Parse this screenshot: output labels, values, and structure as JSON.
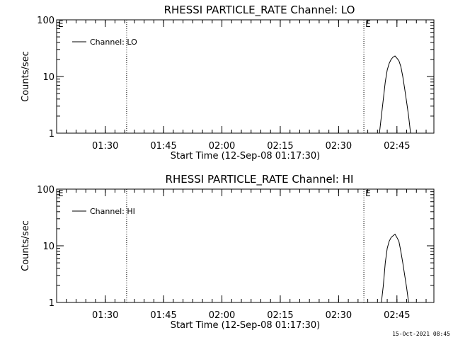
{
  "footer_timestamp": "15-Oct-2021 08:45",
  "chart_data": [
    {
      "type": "line",
      "title": "RHESSI PARTICLE_RATE Channel: LO",
      "ylabel": "Counts/sec",
      "xlabel": "Start Time (12-Sep-08 01:17:30)",
      "yscale": "log",
      "ylim": [
        1,
        100
      ],
      "ytick_labels": [
        "1",
        "10",
        "100"
      ],
      "xlim_minutes_from_start": [
        0,
        97
      ],
      "xticks": [
        "01:30",
        "01:45",
        "02:00",
        "02:15",
        "02:30",
        "02:45"
      ],
      "legend": "top-left",
      "series": [
        {
          "name": "Channel: LO",
          "x": [
            "02:40:30",
            "02:41:00",
            "02:41:30",
            "02:42:00",
            "02:42:30",
            "02:43:00",
            "02:43:30",
            "02:44:00",
            "02:44:30",
            "02:45:00",
            "02:45:30",
            "02:46:00",
            "02:46:30",
            "02:47:00",
            "02:47:30",
            "02:48:00",
            "02:48:30"
          ],
          "y": [
            1,
            2,
            4,
            8,
            13,
            17,
            20,
            22,
            23,
            21,
            19,
            15,
            10,
            6,
            3.5,
            2,
            1
          ]
        }
      ],
      "markers": [
        {
          "time": "01:35:30",
          "label": ""
        },
        {
          "time": "02:36:30",
          "label": "E"
        },
        {
          "time": "02:54:30",
          "label": ""
        }
      ],
      "corner_label": "E"
    },
    {
      "type": "line",
      "title": "RHESSI PARTICLE_RATE Channel: HI",
      "ylabel": "Counts/sec",
      "xlabel": "Start Time (12-Sep-08 01:17:30)",
      "yscale": "log",
      "ylim": [
        1,
        100
      ],
      "ytick_labels": [
        "1",
        "10",
        "100"
      ],
      "xlim_minutes_from_start": [
        0,
        97
      ],
      "xticks": [
        "01:30",
        "01:45",
        "02:00",
        "02:15",
        "02:30",
        "02:45"
      ],
      "legend": "top-left",
      "series": [
        {
          "name": "Channel: HI",
          "x": [
            "02:41:00",
            "02:41:30",
            "02:42:00",
            "02:42:30",
            "02:43:00",
            "02:43:30",
            "02:44:00",
            "02:44:30",
            "02:45:00",
            "02:45:30",
            "02:46:00",
            "02:46:30",
            "02:47:00",
            "02:47:30",
            "02:48:00"
          ],
          "y": [
            1,
            2,
            5,
            9,
            12,
            14,
            15,
            16,
            14,
            12,
            8,
            5,
            3,
            1.8,
            1
          ]
        }
      ],
      "markers": [
        {
          "time": "01:35:30",
          "label": ""
        },
        {
          "time": "02:36:30",
          "label": "E"
        },
        {
          "time": "02:54:30",
          "label": ""
        }
      ],
      "corner_label": "E"
    }
  ]
}
